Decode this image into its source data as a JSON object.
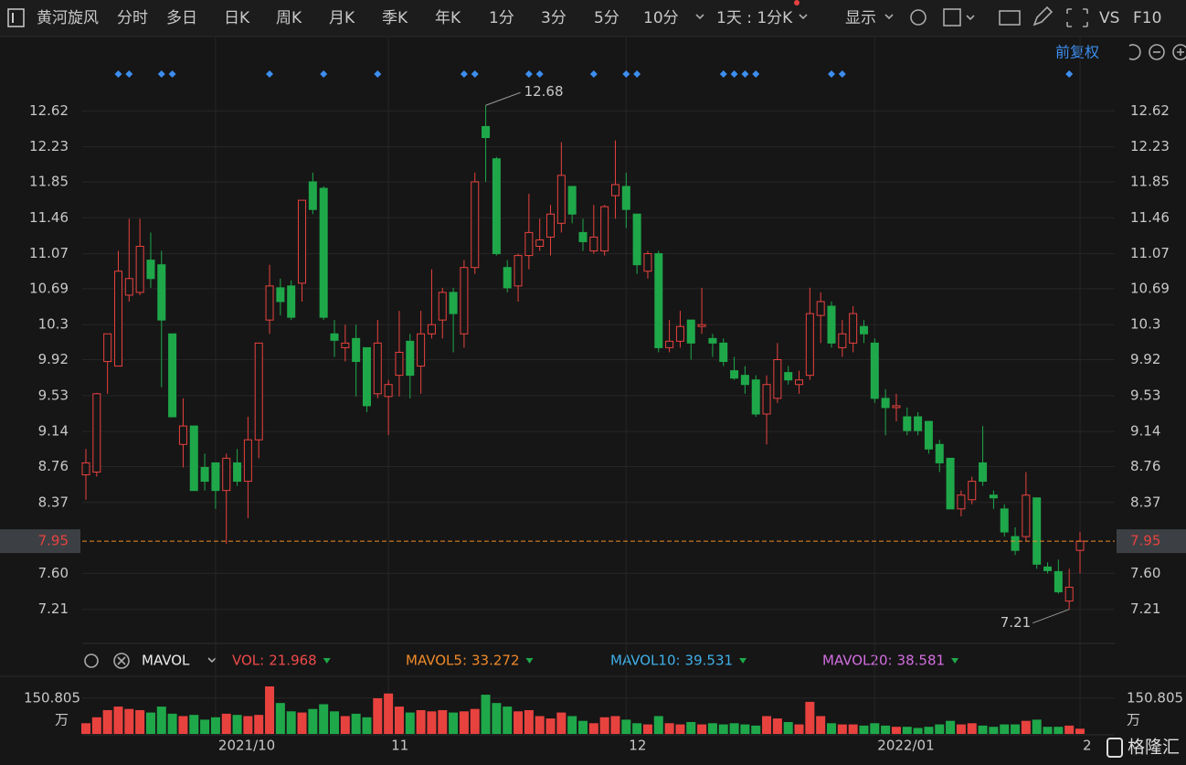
{
  "toolbar": {
    "stock": "黄河旋风",
    "periods": [
      "分时",
      "多日",
      "日K",
      "周K",
      "月K",
      "季K",
      "年K",
      "1分",
      "3分",
      "5分",
      "10分"
    ],
    "active_period": 2,
    "interval": "1天 : 1分K",
    "display": "显示",
    "vs": "VS",
    "f10": "F10"
  },
  "adjust": "前复权",
  "indicator": {
    "name": "MAVOL",
    "items": [
      {
        "name": "VOL:",
        "value": 21.968,
        "color": "#f04a4a"
      },
      {
        "name": "MAVOL5:",
        "value": 33.272,
        "color": "#f08a2a"
      },
      {
        "name": "MAVOL10:",
        "value": 39.531,
        "color": "#3fb0e8"
      },
      {
        "name": "MAVOL20:",
        "value": 38.581,
        "color": "#d36ee0"
      }
    ]
  },
  "watermark": "格隆汇",
  "chart_data": {
    "type": "candlestick",
    "up_color": "#e8423f",
    "down_color": "#1fa84a",
    "grid": true,
    "ylim": [
      6.85,
      13.01
    ],
    "yticks": [
      12.62,
      12.23,
      11.85,
      11.46,
      11.07,
      10.69,
      10.3,
      {
        "value": 9.92,
        "label": "9.92"
      },
      9.53,
      9.14,
      8.76,
      8.37,
      {
        "value": 7.6,
        "label": "7.60"
      },
      7.21
    ],
    "vol_ylim": [
      0,
      223
    ],
    "vol_yticks": [
      150.805
    ],
    "vol_unit": "万",
    "date_labels": [
      {
        "index": 12,
        "label": "2021/10"
      },
      {
        "index": 28,
        "label": "11"
      },
      {
        "index": 50,
        "label": "12"
      },
      {
        "index": 73,
        "label": "2022/01"
      },
      {
        "index": 92,
        "label": "2"
      }
    ],
    "event_marks": [
      3,
      4,
      7,
      8,
      17,
      22,
      27,
      35,
      36,
      41,
      42,
      47,
      50,
      51,
      59,
      60,
      61,
      62,
      69,
      70,
      91
    ],
    "open": [
      8.67,
      8.7,
      9.9,
      9.85,
      10.62,
      10.65,
      11.0,
      10.95,
      10.2,
      9.0,
      9.2,
      8.75,
      8.8,
      8.5,
      8.8,
      8.6,
      9.05,
      10.35,
      10.7,
      10.72,
      10.75,
      11.85,
      11.78,
      10.2,
      10.05,
      10.15,
      10.05,
      9.55,
      9.52,
      9.75,
      10.12,
      9.85,
      10.2,
      10.35,
      10.65,
      10.2,
      10.92,
      12.45,
      12.1,
      10.92,
      10.72,
      11.05,
      11.15,
      11.25,
      11.4,
      11.8,
      11.3,
      11.1,
      11.1,
      11.7,
      11.8,
      11.5,
      10.88,
      11.07,
      10.05,
      10.12,
      10.35,
      10.28,
      10.15,
      10.1,
      9.8,
      9.75,
      9.7,
      9.33,
      9.5,
      9.78,
      9.65,
      9.75,
      10.4,
      10.5,
      10.05,
      10.1,
      10.28,
      10.1,
      9.5,
      9.4,
      9.3,
      9.3,
      9.25,
      9.0,
      8.85,
      8.3,
      8.4,
      8.8,
      8.45,
      8.3,
      8.0,
      8.0,
      8.42,
      7.67,
      7.62,
      7.3,
      7.85
    ],
    "close": [
      8.8,
      9.55,
      10.2,
      10.88,
      10.8,
      11.15,
      10.8,
      10.35,
      9.3,
      9.2,
      8.5,
      8.6,
      8.5,
      8.85,
      8.6,
      9.05,
      10.1,
      10.72,
      10.55,
      10.38,
      11.65,
      11.55,
      10.38,
      10.13,
      10.1,
      9.9,
      9.42,
      10.1,
      9.65,
      10.0,
      9.75,
      10.2,
      10.3,
      10.65,
      10.42,
      10.92,
      11.85,
      12.33,
      11.07,
      10.7,
      11.05,
      11.3,
      11.22,
      11.5,
      11.92,
      11.5,
      11.2,
      11.25,
      11.58,
      11.82,
      11.55,
      10.95,
      11.07,
      10.05,
      10.12,
      10.28,
      10.1,
      10.3,
      10.1,
      9.9,
      9.72,
      9.65,
      9.33,
      9.65,
      9.92,
      9.7,
      9.7,
      10.42,
      10.55,
      10.1,
      10.2,
      10.42,
      10.2,
      9.5,
      9.4,
      9.42,
      9.15,
      9.15,
      8.95,
      8.8,
      8.3,
      8.45,
      8.6,
      8.6,
      8.42,
      8.05,
      7.85,
      8.45,
      7.7,
      7.63,
      7.4,
      7.45,
      7.95
    ],
    "high": [
      8.95,
      9.56,
      10.2,
      11.1,
      11.45,
      11.45,
      11.3,
      11.1,
      10.2,
      9.5,
      9.2,
      8.9,
      8.8,
      8.9,
      8.95,
      9.3,
      10.1,
      10.95,
      10.8,
      10.78,
      11.65,
      11.95,
      11.8,
      10.35,
      10.3,
      10.3,
      10.05,
      10.35,
      9.7,
      10.45,
      10.2,
      10.45,
      10.9,
      10.7,
      10.7,
      11.0,
      11.95,
      12.68,
      12.12,
      11.0,
      11.07,
      11.72,
      11.45,
      11.6,
      12.28,
      11.8,
      11.45,
      11.6,
      11.6,
      12.3,
      11.95,
      11.5,
      11.1,
      11.1,
      10.35,
      10.45,
      10.35,
      10.7,
      10.2,
      10.15,
      9.95,
      9.85,
      9.75,
      9.75,
      10.1,
      9.85,
      9.8,
      10.7,
      10.65,
      10.55,
      10.35,
      10.5,
      10.35,
      10.15,
      9.6,
      9.55,
      9.4,
      9.35,
      9.25,
      9.05,
      8.85,
      8.5,
      8.65,
      9.2,
      8.5,
      8.35,
      8.1,
      8.7,
      8.42,
      7.72,
      7.75,
      7.65,
      8.05
    ],
    "low": [
      8.4,
      8.65,
      9.55,
      9.85,
      10.55,
      10.62,
      10.7,
      9.62,
      9.3,
      8.75,
      8.5,
      8.5,
      8.3,
      7.92,
      8.55,
      8.2,
      8.85,
      10.2,
      10.4,
      10.35,
      10.55,
      11.5,
      10.35,
      9.95,
      9.9,
      9.52,
      9.35,
      9.5,
      9.1,
      9.52,
      9.5,
      9.55,
      10.15,
      10.15,
      10.0,
      10.05,
      10.85,
      11.85,
      11.05,
      10.65,
      10.55,
      10.9,
      11.1,
      11.05,
      11.3,
      11.4,
      11.1,
      11.07,
      11.05,
      11.45,
      11.35,
      10.85,
      10.8,
      10.0,
      10.0,
      10.05,
      9.92,
      10.2,
      9.95,
      9.85,
      9.7,
      9.55,
      9.3,
      9.0,
      9.45,
      9.65,
      9.55,
      9.7,
      10.1,
      10.05,
      9.95,
      10.0,
      10.1,
      9.45,
      9.1,
      9.25,
      9.1,
      9.1,
      8.9,
      8.7,
      8.3,
      8.22,
      8.35,
      8.55,
      8.3,
      8.0,
      7.8,
      7.95,
      7.65,
      7.6,
      7.38,
      7.21,
      7.6
    ],
    "volume": [
      45,
      70,
      100,
      115,
      105,
      100,
      90,
      115,
      85,
      75,
      80,
      60,
      70,
      85,
      80,
      75,
      80,
      200,
      130,
      95,
      90,
      105,
      125,
      95,
      75,
      85,
      70,
      150,
      170,
      115,
      90,
      100,
      95,
      100,
      90,
      95,
      105,
      165,
      130,
      115,
      95,
      100,
      75,
      65,
      90,
      75,
      55,
      45,
      70,
      75,
      60,
      45,
      40,
      75,
      45,
      40,
      50,
      40,
      45,
      40,
      45,
      40,
      35,
      75,
      65,
      50,
      40,
      135,
      75,
      45,
      40,
      40,
      35,
      45,
      35,
      30,
      30,
      25,
      30,
      40,
      55,
      40,
      45,
      35,
      30,
      40,
      40,
      55,
      60,
      30,
      30,
      35,
      21.968
    ]
  }
}
